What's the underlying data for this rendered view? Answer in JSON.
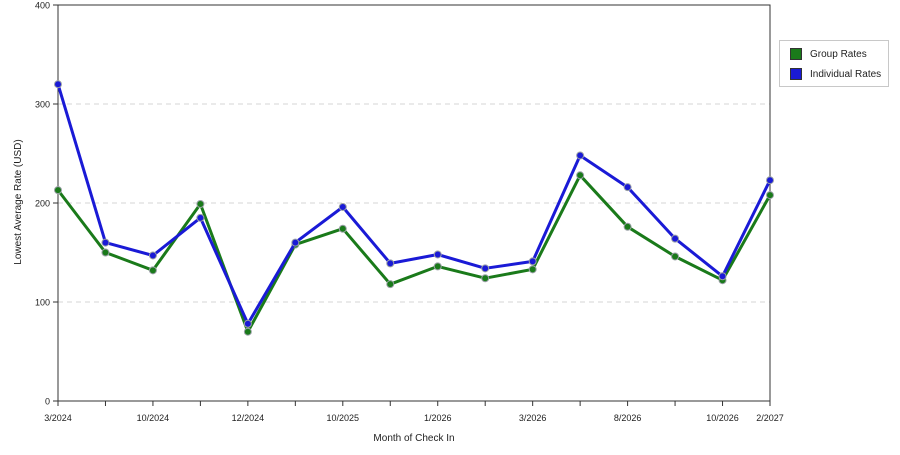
{
  "chart_data": {
    "type": "line",
    "title": "",
    "xlabel": "Month of Check In",
    "ylabel": "Lowest Average Rate (USD)",
    "ylim": [
      0,
      400
    ],
    "yticks": [
      "0",
      "100",
      "200",
      "300",
      "400"
    ],
    "grid": "horizontal dashed",
    "legend_position": "top-right",
    "x_tick_labels": [
      {
        "index": 0,
        "label": "3/2024"
      },
      {
        "index": 2,
        "label": "10/2024"
      },
      {
        "index": 4,
        "label": "12/2024"
      },
      {
        "index": 6,
        "label": "10/2025"
      },
      {
        "index": 8,
        "label": "1/2026"
      },
      {
        "index": 10,
        "label": "3/2026"
      },
      {
        "index": 12,
        "label": "8/2026"
      },
      {
        "index": 14,
        "label": "10/2026"
      },
      {
        "index": 15,
        "label": "2/2027"
      }
    ],
    "series": [
      {
        "name": "Group Rates",
        "color": "#1a7a1a",
        "values": [
          213,
          150,
          132,
          199,
          70,
          158,
          174,
          118,
          136,
          124,
          133,
          228,
          176,
          146,
          122,
          208
        ]
      },
      {
        "name": "Individual Rates",
        "color": "#1a1ad6",
        "values": [
          320,
          160,
          147,
          185,
          78,
          160,
          196,
          139,
          148,
          134,
          141,
          248,
          216,
          164,
          126,
          223
        ]
      }
    ]
  }
}
